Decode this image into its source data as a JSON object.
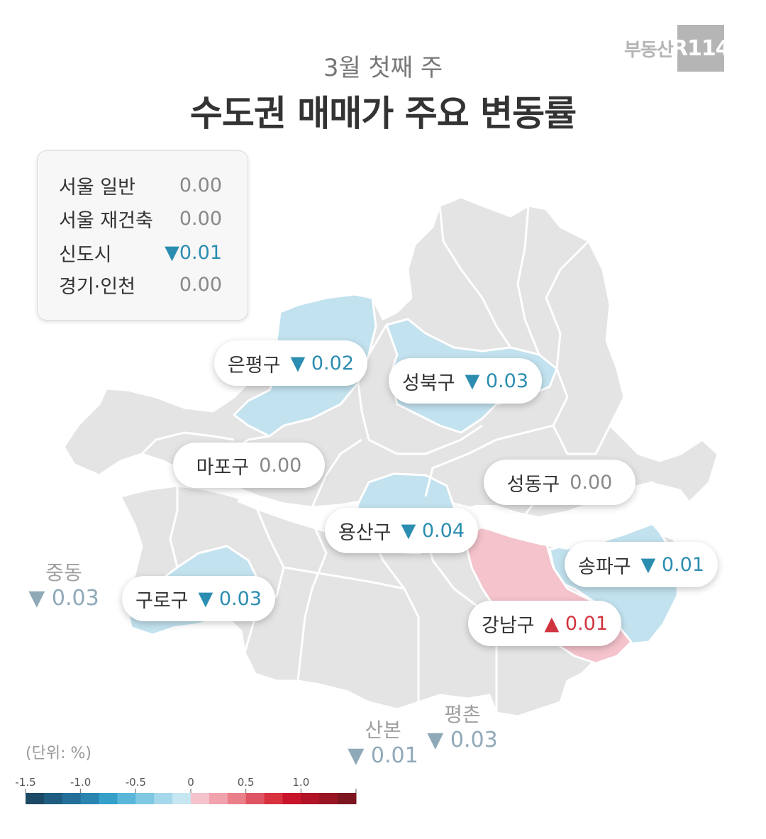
{
  "header": {
    "subtitle": "3월 첫째 주",
    "title": "수도권 매매가 주요 변동률"
  },
  "logo": {
    "text": "부동산",
    "mark": "R114"
  },
  "summary": [
    {
      "label": "서울 일반",
      "value": "0.00",
      "direction": "flat"
    },
    {
      "label": "서울 재건축",
      "value": "0.00",
      "direction": "flat"
    },
    {
      "label": "신도시",
      "value": "▼0.01",
      "direction": "down"
    },
    {
      "label": "경기·인천",
      "value": "0.00",
      "direction": "flat"
    }
  ],
  "districts": [
    {
      "name": "은평구",
      "value": "▼ 0.02",
      "direction": "down"
    },
    {
      "name": "성북구",
      "value": "▼ 0.03",
      "direction": "down"
    },
    {
      "name": "마포구",
      "value": "0.00",
      "direction": "flat"
    },
    {
      "name": "성동구",
      "value": "0.00",
      "direction": "flat"
    },
    {
      "name": "용산구",
      "value": "▼ 0.04",
      "direction": "down"
    },
    {
      "name": "송파구",
      "value": "▼ 0.01",
      "direction": "down"
    },
    {
      "name": "구로구",
      "value": "▼ 0.03",
      "direction": "down"
    },
    {
      "name": "강남구",
      "value": "▲ 0.01",
      "direction": "up"
    }
  ],
  "outer_areas": [
    {
      "name": "중동",
      "value": "▼ 0.03"
    },
    {
      "name": "산본",
      "value": "▼ 0.01"
    },
    {
      "name": "평촌",
      "value": "▼ 0.03"
    }
  ],
  "unit": "(단위:  %)",
  "legend": {
    "ticks": [
      "-1.5",
      "-1.0",
      "-0.5",
      "0",
      "0.5",
      "1.0"
    ],
    "colors": [
      "#1c4a66",
      "#1f5d80",
      "#236f99",
      "#2a84b0",
      "#35a0c8",
      "#5ab7d9",
      "#7fc7e2",
      "#a6d8ec",
      "#c6e6f2",
      "#f4c3cc",
      "#f0a3ad",
      "#ea7f8a",
      "#e05563",
      "#d9323f",
      "#c8152b",
      "#b11327",
      "#991523",
      "#7d1520"
    ]
  },
  "colors": {
    "base": "#e4e4e4",
    "decline": "#c2e2ef",
    "rise": "#f4c3cc",
    "river": "#ffffff",
    "down_text": "#2b8db0",
    "up_text": "#d0343f"
  }
}
